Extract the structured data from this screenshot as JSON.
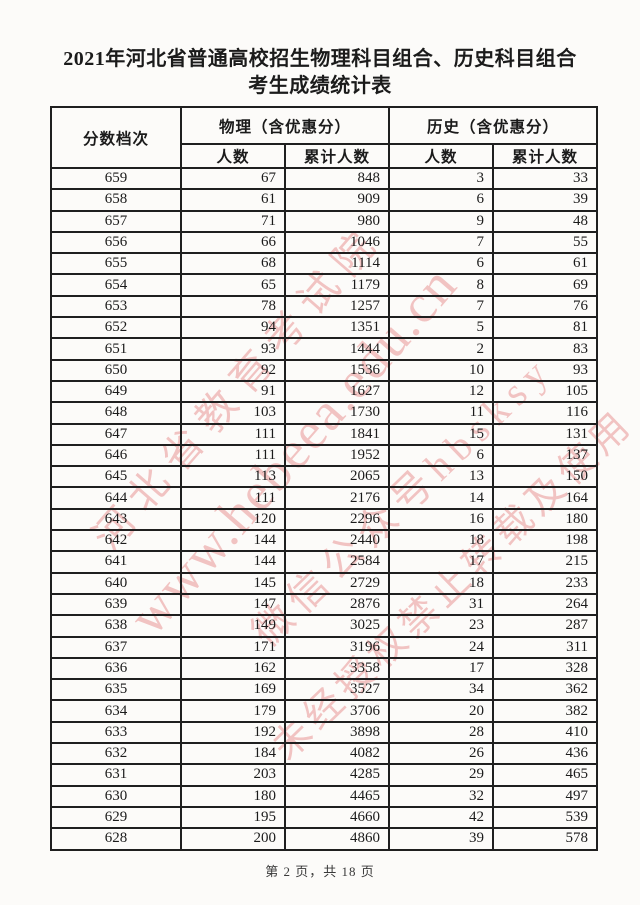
{
  "document": {
    "title_line1": "2021年河北省普通高校招生物理科目组合、历史科目组合",
    "title_line2": "考生成绩统计表",
    "footer": "第 2 页，共 18 页"
  },
  "watermark": {
    "color": "#e78c8c",
    "org": "河北省教育考试院",
    "url": "www.hebeea.edu.cn",
    "wechat": "微信公众号hbsksy",
    "legal": "未经授权禁止转载及使用"
  },
  "table": {
    "col_score": "分数档次",
    "group_physics": "物理（含优惠分）",
    "group_history": "历史（含优惠分）",
    "subheaders": [
      "人数",
      "累计人数",
      "人数",
      "累计人数"
    ],
    "rows": [
      [
        "659",
        "67",
        "848",
        "3",
        "33"
      ],
      [
        "658",
        "61",
        "909",
        "6",
        "39"
      ],
      [
        "657",
        "71",
        "980",
        "9",
        "48"
      ],
      [
        "656",
        "66",
        "1046",
        "7",
        "55"
      ],
      [
        "655",
        "68",
        "1114",
        "6",
        "61"
      ],
      [
        "654",
        "65",
        "1179",
        "8",
        "69"
      ],
      [
        "653",
        "78",
        "1257",
        "7",
        "76"
      ],
      [
        "652",
        "94",
        "1351",
        "5",
        "81"
      ],
      [
        "651",
        "93",
        "1444",
        "2",
        "83"
      ],
      [
        "650",
        "92",
        "1536",
        "10",
        "93"
      ],
      [
        "649",
        "91",
        "1627",
        "12",
        "105"
      ],
      [
        "648",
        "103",
        "1730",
        "11",
        "116"
      ],
      [
        "647",
        "111",
        "1841",
        "15",
        "131"
      ],
      [
        "646",
        "111",
        "1952",
        "6",
        "137"
      ],
      [
        "645",
        "113",
        "2065",
        "13",
        "150"
      ],
      [
        "644",
        "111",
        "2176",
        "14",
        "164"
      ],
      [
        "643",
        "120",
        "2296",
        "16",
        "180"
      ],
      [
        "642",
        "144",
        "2440",
        "18",
        "198"
      ],
      [
        "641",
        "144",
        "2584",
        "17",
        "215"
      ],
      [
        "640",
        "145",
        "2729",
        "18",
        "233"
      ],
      [
        "639",
        "147",
        "2876",
        "31",
        "264"
      ],
      [
        "638",
        "149",
        "3025",
        "23",
        "287"
      ],
      [
        "637",
        "171",
        "3196",
        "24",
        "311"
      ],
      [
        "636",
        "162",
        "3358",
        "17",
        "328"
      ],
      [
        "635",
        "169",
        "3527",
        "34",
        "362"
      ],
      [
        "634",
        "179",
        "3706",
        "20",
        "382"
      ],
      [
        "633",
        "192",
        "3898",
        "28",
        "410"
      ],
      [
        "632",
        "184",
        "4082",
        "26",
        "436"
      ],
      [
        "631",
        "203",
        "4285",
        "29",
        "465"
      ],
      [
        "630",
        "180",
        "4465",
        "32",
        "497"
      ],
      [
        "629",
        "195",
        "4660",
        "42",
        "539"
      ],
      [
        "628",
        "200",
        "4860",
        "39",
        "578"
      ]
    ]
  }
}
